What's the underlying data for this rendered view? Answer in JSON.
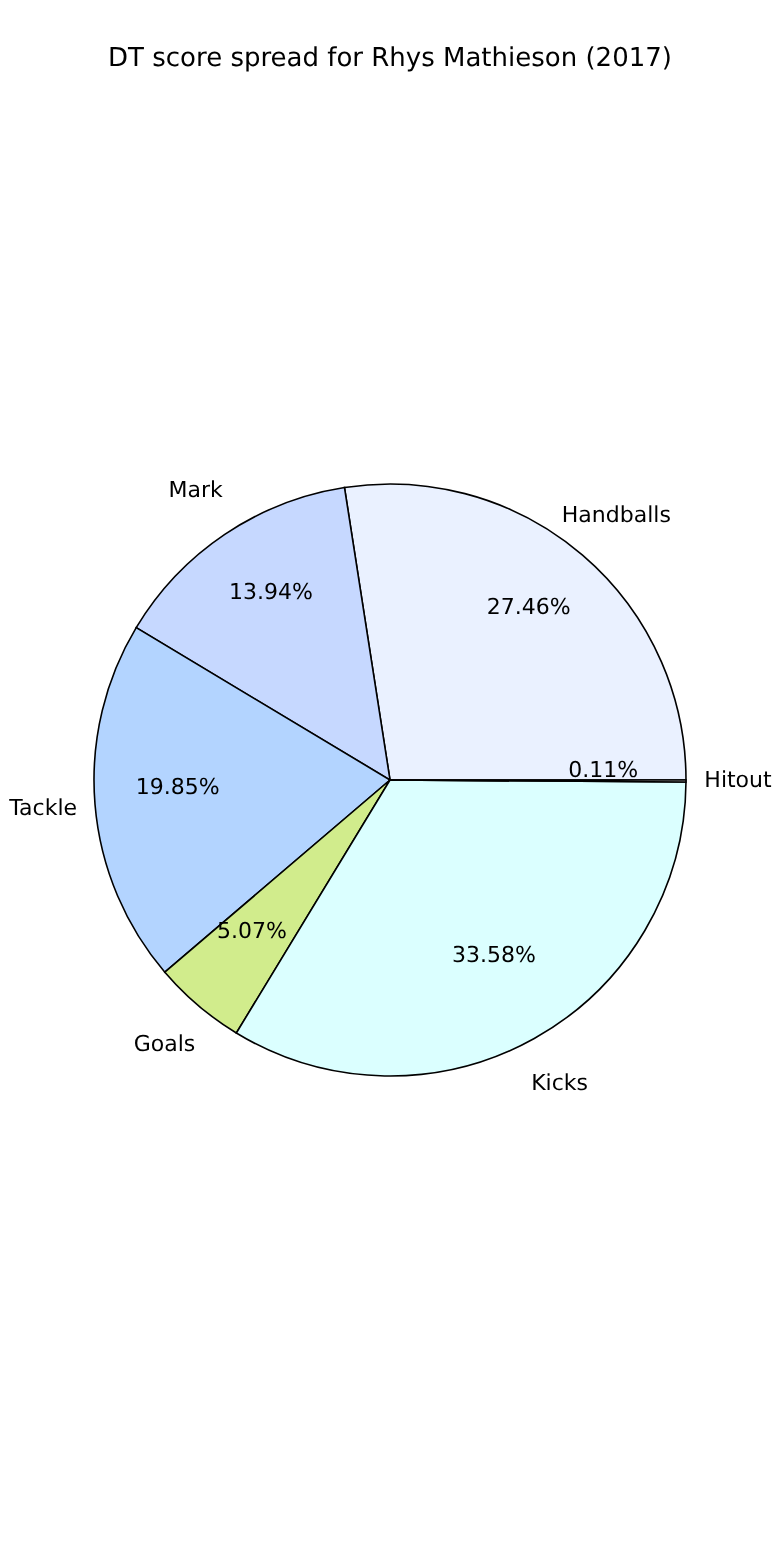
{
  "chart_data": {
    "type": "pie",
    "title": "DT score spread for Rhys Mathieson (2017)",
    "categories": [
      "Handballs",
      "Mark",
      "Tackle",
      "Goals",
      "Kicks",
      "Hitout"
    ],
    "values": [
      27.46,
      13.94,
      19.85,
      5.07,
      33.58,
      0.11
    ],
    "value_labels": [
      "27.46%",
      "13.94%",
      "19.85%",
      "5.07%",
      "33.58%",
      "0.11%"
    ],
    "colors": [
      "#eaf1ff",
      "#c6d8ff",
      "#b3d4ff",
      "#d1ec8c",
      "#dbffff",
      "#e6e6e6"
    ],
    "legend": false
  }
}
